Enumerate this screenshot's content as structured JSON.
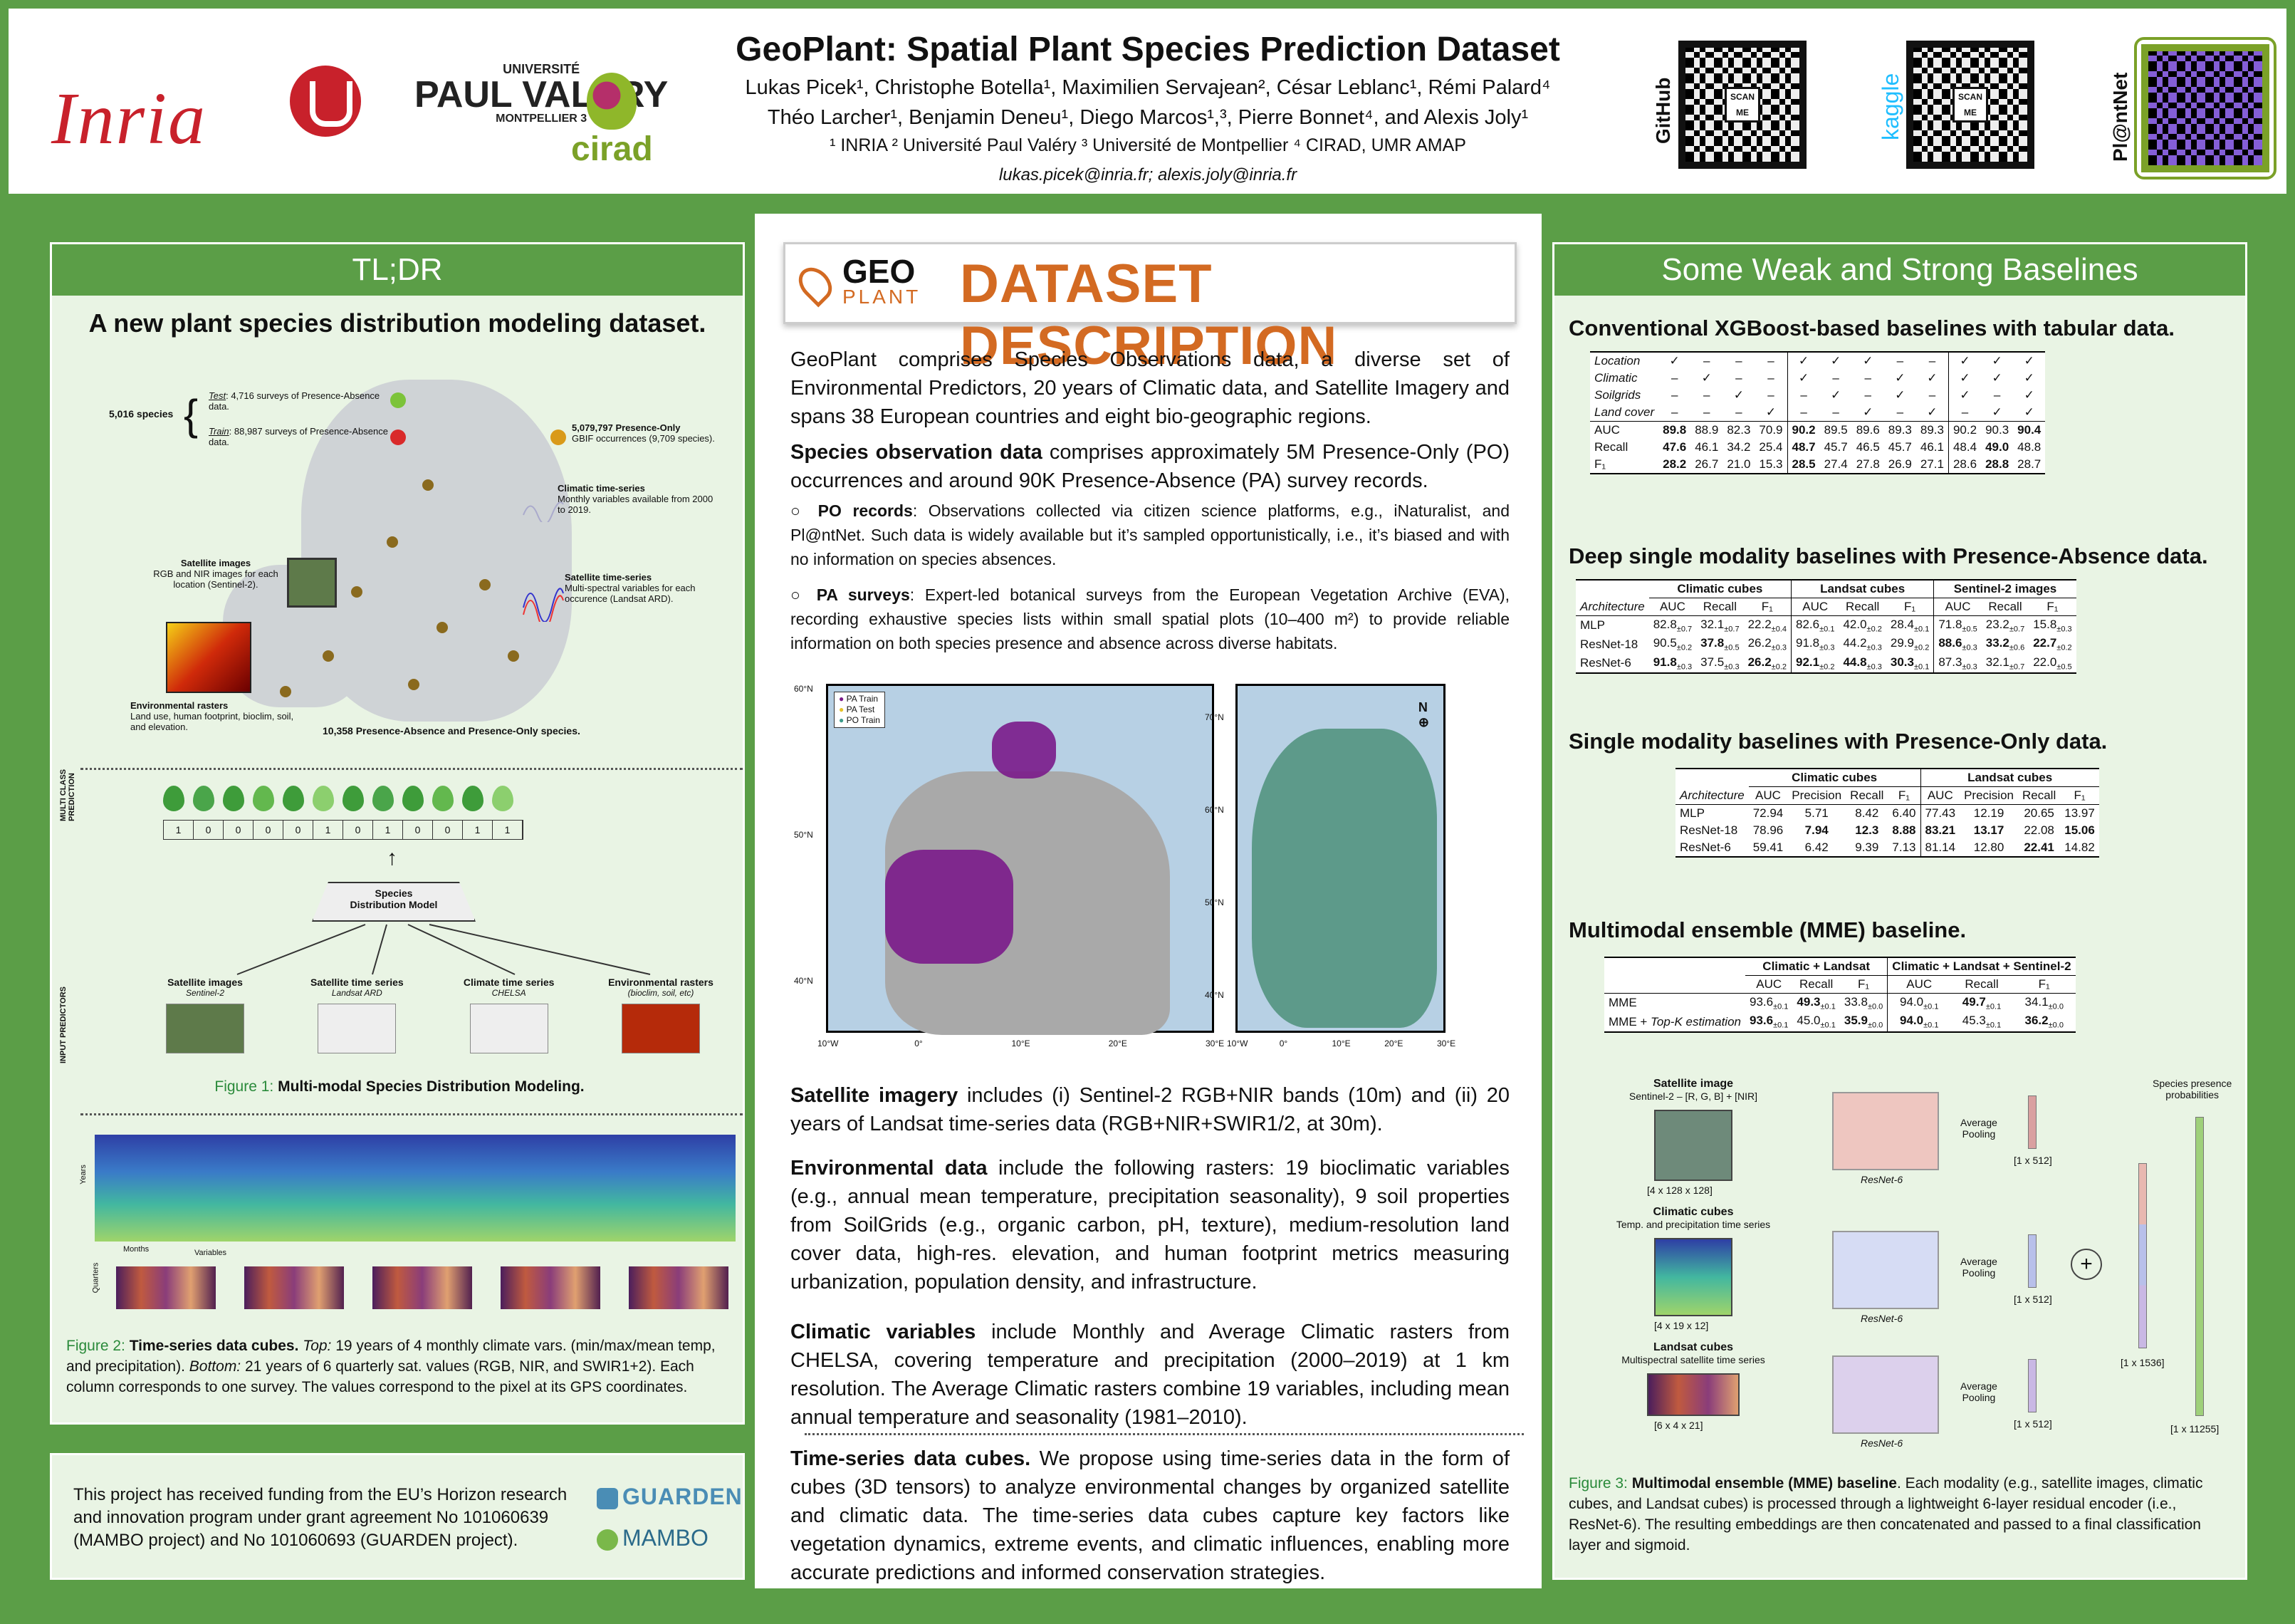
{
  "header": {
    "title": "GeoPlant: Spatial Plant Species Prediction Dataset",
    "authors_line1": "Lukas Picek¹, Christophe Botella¹, Maximilien Servajean², César Leblanc¹, Rémi Palard⁴",
    "authors_line2": "Théo Larcher¹, Benjamin Deneu¹, Diego Marcos¹,³, Pierre Bonnet⁴, and Alexis Joly¹",
    "affiliations": "¹ INRIA ² Université Paul Valéry ³ Université de Montpellier ⁴ CIRAD, UMR AMAP",
    "emails": "lukas.picek@inria.fr; alexis.joly@inria.fr",
    "logos": {
      "inria": "Inria",
      "paul_l1": "UNIVERSITÉ",
      "paul_l2": "PAUL VALÉRY",
      "paul_l3": "MONTPELLIER 3",
      "cirad": "cirad"
    },
    "qr_labels": {
      "github": "GitHub",
      "kaggle": "kaggle",
      "plantnet": "Pl@ntNet",
      "scan": "SCAN ME"
    }
  },
  "tldr": {
    "heading": "TL;DR",
    "subheading": "A new plant species distribution modeling dataset.",
    "map": {
      "species_count": "5,016 species",
      "test_label": "Test",
      "test_text": ": 4,716 surveys of Presence-Absence data.",
      "train_label": "Train",
      "train_text": ": 88,987 surveys of Presence-Absence data.",
      "po_title": "5,079,797 Presence-Only",
      "po_text": "GBIF occurrences (9,709 species).",
      "clim_title": "Climatic time-series",
      "clim_text": "Monthly variables available from 2000 to 2019.",
      "sat_ts_title": "Satellite time-series",
      "sat_ts_text": "Multi-spectral variables for each occurence (Landsat ARD).",
      "sat_img_title": "Satellite images",
      "sat_img_text": "RGB and NIR images for each location (Sentinel-2).",
      "env_title": "Environmental rasters",
      "env_text": "Land use, human footprint, bioclim, soil, and elevation.",
      "total": "10,358 Presence-Absence and Presence-Only species."
    },
    "fig1": {
      "vertical_top": "MULTI CLASS PREDICTION",
      "vector": [
        "1",
        "0",
        "0",
        "0",
        "0",
        "1",
        "0",
        "1",
        "0",
        "0",
        "1",
        "1"
      ],
      "model_l1": "Species",
      "model_l2": "Distribution Model",
      "vertical_bottom": "INPUT PREDICTORS",
      "inputs": [
        {
          "title": "Satellite images",
          "sub": "Sentinel-2"
        },
        {
          "title": "Satellite time series",
          "sub": "Landsat ARD"
        },
        {
          "title": "Climate time series",
          "sub": "CHELSA"
        },
        {
          "title": "Environmental rasters",
          "sub": "(bioclim, soil, etc)"
        }
      ],
      "caption_label": "Figure 1:",
      "caption_text": "Multi-modal Species Distribution Modeling."
    },
    "fig2": {
      "axis_years": "Years",
      "axis_months": "Months",
      "axis_variables": "Variables",
      "axis_quarters": "Quarters",
      "caption_label": "Figure 2:",
      "caption_bold": "Time-series data cubes.",
      "caption_top_label": "Top:",
      "caption_top": "19 years of 4 monthly climate vars. (min/max/mean temp, and precipitation).",
      "caption_bottom_label": "Bottom:",
      "caption_bottom": "21 years of 6 quarterly sat. values (RGB, NIR, and SWIR1+2). Each column corresponds to one survey. The values correspond to the pixel at its GPS coordinates."
    }
  },
  "funding": {
    "text": "This project has received funding from the EU’s Horizon research and innovation program under grant agreement No 101060639 (MAMBO project) and No 101060693 (GUARDEN project).",
    "logo1": "GUARDEN",
    "logo2": "MAMBO"
  },
  "description": {
    "logo_geo": "GEO",
    "logo_plant": "PLANT",
    "heading": "DATASET DESCRIPTION",
    "intro": "GeoPlant comprises Species Observations data, a diverse set of Environmental Predictors, 20 years of Climatic data, and Satellite Imagery and spans 38 European countries and eight bio-geographic regions.",
    "species_obs_bold": "Species observation data",
    "species_obs": "comprises approximately 5M Presence-Only (PO) occurrences and around 90K Presence-Absence (PA) survey records.",
    "po_bold": "PO records",
    "po_text": ": Observations collected via citizen science platforms, e.g., iNaturalist, and Pl@ntNet. Such data is widely available but it’s sampled opportunistically, i.e., it’s biased and with no information on species absences.",
    "pa_bold": "PA surveys",
    "pa_text": ": Expert-led botanical surveys from the European Vegetation Archive (EVA), recording exhaustive species lists within small spatial plots (10–400 m²) to provide reliable information on both species presence and absence across diverse habitats.",
    "map_legend": [
      "PA Train",
      "PA Test",
      "PO Train"
    ],
    "map_lat_left": [
      "60°N",
      "50°N",
      "40°N"
    ],
    "map_lon_left": [
      "10°W",
      "0°",
      "10°E",
      "20°E",
      "30°E"
    ],
    "map_lat_right": [
      "70°N",
      "60°N",
      "50°N",
      "40°N"
    ],
    "map_lon_right": [
      "10°W",
      "0°",
      "10°E",
      "20°E",
      "30°E"
    ],
    "north": "N",
    "sat_bold": "Satellite imagery",
    "sat_text": "includes (i) Sentinel-2 RGB+NIR bands (10m) and (ii) 20 years of Landsat time-series data (RGB+NIR+SWIR1/2, at 30m).",
    "env_bold": "Environmental data",
    "env_text": "include the following rasters: 19 bioclimatic variables (e.g., annual mean temperature, precipitation seasonality), 9 soil properties from SoilGrids (e.g., organic carbon, pH, texture), medium-resolution land cover data, high-res. elevation, and human footprint metrics measuring urbanization, population density, and infrastructure.",
    "clim_bold": "Climatic variables",
    "clim_text": "include Monthly and Average Climatic rasters from CHELSA, covering temperature and precipitation (2000–2019) at 1 km resolution. The Average Climatic rasters combine 19 variables, including mean annual temperature and seasonality (1981–2010).",
    "ts_bold": "Time-series data cubes.",
    "ts_text": "We propose using time-series data in the form of cubes (3D tensors) to analyze environmental changes by organized satellite and climatic data. The time-series data cubes capture key factors like vegetation dynamics, extreme events, and climatic influences, enabling more accurate predictions and informed conservation strategies."
  },
  "baselines": {
    "heading": "Some Weak and Strong Baselines",
    "t1": {
      "title": "Conventional XGBoost-based baselines with tabular data.",
      "feature_rows": [
        {
          "name": "Location",
          "vals": [
            "✓",
            "–",
            "–",
            "–",
            "✓",
            "✓",
            "✓",
            "–",
            "–",
            "✓",
            "✓",
            "✓"
          ]
        },
        {
          "name": "Climatic",
          "vals": [
            "–",
            "✓",
            "–",
            "–",
            "✓",
            "–",
            "–",
            "✓",
            "✓",
            "✓",
            "✓",
            "✓"
          ]
        },
        {
          "name": "Soilgrids",
          "vals": [
            "–",
            "–",
            "✓",
            "–",
            "–",
            "✓",
            "–",
            "✓",
            "–",
            "✓",
            "–",
            "✓"
          ]
        },
        {
          "name": "Land cover",
          "vals": [
            "–",
            "–",
            "–",
            "✓",
            "–",
            "–",
            "✓",
            "–",
            "✓",
            "–",
            "✓",
            "✓"
          ]
        }
      ],
      "metric_rows": [
        {
          "name": "AUC",
          "vals": [
            "89.8",
            "88.9",
            "82.3",
            "70.9",
            "90.2",
            "89.5",
            "89.6",
            "89.3",
            "89.3",
            "90.2",
            "90.3",
            "90.4"
          ],
          "bold": [
            0,
            4,
            11
          ]
        },
        {
          "name": "Recall",
          "vals": [
            "47.6",
            "46.1",
            "34.2",
            "25.4",
            "48.7",
            "45.7",
            "46.5",
            "45.7",
            "46.1",
            "48.4",
            "49.0",
            "48.8"
          ],
          "bold": [
            0,
            4,
            10
          ]
        },
        {
          "name": "F₁",
          "vals": [
            "28.2",
            "26.7",
            "21.0",
            "15.3",
            "28.5",
            "27.4",
            "27.8",
            "26.9",
            "27.1",
            "28.6",
            "28.8",
            "28.7"
          ],
          "bold": [
            0,
            4,
            10
          ]
        }
      ]
    },
    "t2": {
      "title": "Deep single modality baselines with Presence-Absence data.",
      "groups": [
        "Climatic cubes",
        "Landsat cubes",
        "Sentinel-2 images"
      ],
      "arch": "Architecture",
      "cols": [
        "AUC",
        "Recall",
        "F₁"
      ],
      "rows": [
        {
          "name": "MLP",
          "vals": [
            [
              "82.8",
              "±0.7"
            ],
            [
              "32.1",
              "±0.7"
            ],
            [
              "22.2",
              "±0.4"
            ],
            [
              "82.6",
              "±0.1"
            ],
            [
              "42.0",
              "±0.2"
            ],
            [
              "28.4",
              "±0.1"
            ],
            [
              "71.8",
              "±0.5"
            ],
            [
              "23.2",
              "±0.7"
            ],
            [
              "15.8",
              "±0.3"
            ]
          ],
          "bold": []
        },
        {
          "name": "ResNet-18",
          "vals": [
            [
              "90.5",
              "±0.2"
            ],
            [
              "37.8",
              "±0.5"
            ],
            [
              "26.2",
              "±0.3"
            ],
            [
              "91.8",
              "±0.3"
            ],
            [
              "44.2",
              "±0.3"
            ],
            [
              "29.9",
              "±0.2"
            ],
            [
              "88.6",
              "±0.3"
            ],
            [
              "33.2",
              "±0.6"
            ],
            [
              "22.7",
              "±0.2"
            ]
          ],
          "bold": [
            1,
            6,
            7,
            8
          ]
        },
        {
          "name": "ResNet-6",
          "vals": [
            [
              "91.8",
              "±0.3"
            ],
            [
              "37.5",
              "±0.3"
            ],
            [
              "26.2",
              "±0.2"
            ],
            [
              "92.1",
              "±0.2"
            ],
            [
              "44.8",
              "±0.3"
            ],
            [
              "30.3",
              "±0.1"
            ],
            [
              "87.3",
              "±0.3"
            ],
            [
              "32.1",
              "±0.7"
            ],
            [
              "22.0",
              "±0.5"
            ]
          ],
          "bold": [
            0,
            2,
            3,
            4,
            5
          ]
        }
      ]
    },
    "t3": {
      "title": "Single modality baselines with Presence-Only data.",
      "groups": [
        "Climatic cubes",
        "Landsat cubes"
      ],
      "arch": "Architecture",
      "cols": [
        "AUC",
        "Precision",
        "Recall",
        "F₁"
      ],
      "rows": [
        {
          "name": "MLP",
          "vals": [
            "72.94",
            "5.71",
            "8.42",
            "6.40",
            "77.43",
            "12.19",
            "20.65",
            "13.97"
          ],
          "bold": []
        },
        {
          "name": "ResNet-18",
          "vals": [
            "78.96",
            "7.94",
            "12.3",
            "8.88",
            "83.21",
            "13.17",
            "22.08",
            "15.06"
          ],
          "bold": [
            1,
            2,
            3,
            4,
            5,
            7
          ]
        },
        {
          "name": "ResNet-6",
          "vals": [
            "59.41",
            "6.42",
            "9.39",
            "7.13",
            "81.14",
            "12.80",
            "22.41",
            "14.82"
          ],
          "bold": [
            6
          ]
        }
      ]
    },
    "t4": {
      "title": "Multimodal ensemble (MME) baseline.",
      "groups": [
        "Climatic + Landsat",
        "Climatic + Landsat + Sentinel-2"
      ],
      "cols": [
        "AUC",
        "Recall",
        "F₁"
      ],
      "rows": [
        {
          "name": "MME",
          "suffix": "",
          "vals": [
            [
              "93.6",
              "±0.1"
            ],
            [
              "49.3",
              "±0.1"
            ],
            [
              "33.8",
              "±0.0"
            ],
            [
              "94.0",
              "±0.1"
            ],
            [
              "49.7",
              "±0.1"
            ],
            [
              "34.1",
              "±0.0"
            ]
          ],
          "bold": [
            1,
            4
          ]
        },
        {
          "name": "MME + ",
          "suffix": "Top-K estimation",
          "vals": [
            [
              "93.6",
              "±0.1"
            ],
            [
              "45.0",
              "±0.1"
            ],
            [
              "35.9",
              "±0.0"
            ],
            [
              "94.0",
              "±0.1"
            ],
            [
              "45.3",
              "±0.1"
            ],
            [
              "36.2",
              "±0.0"
            ]
          ],
          "bold": [
            0,
            2,
            3,
            5
          ]
        }
      ]
    },
    "fig3": {
      "sat_title": "Satellite image",
      "sat_sub": "Sentinel-2 – [R, G, B] + [NIR]",
      "sat_shape": "[4 x 128 x 128]",
      "clim_title": "Climatic cubes",
      "clim_sub": "Temp. and precipitation time series",
      "clim_shape": "[4 x 19 x 12]",
      "land_title": "Landsat cubes",
      "land_sub": "Multispectral satellite time series",
      "land_shape": "[6 x 4 x 21]",
      "resnet": "ResNet-6",
      "avg1": "Average",
      "avg2": "Pooling",
      "emb": "[1 x 512]",
      "concat": "[1 x 1536]",
      "out": "[1 x 11255]",
      "probs1": "Species presence",
      "probs2": "probabilities",
      "caption_label": "Figure 3:",
      "caption_bold": "Multimodal ensemble (MME) baseline",
      "caption_text": ". Each modality (e.g., satellite images, climatic cubes, and Landsat cubes) is processed through a lightweight 6-layer residual encoder (i.e., ResNet-6). The resulting embeddings are then concatenated and passed to a final classification layer and sigmoid."
    }
  }
}
